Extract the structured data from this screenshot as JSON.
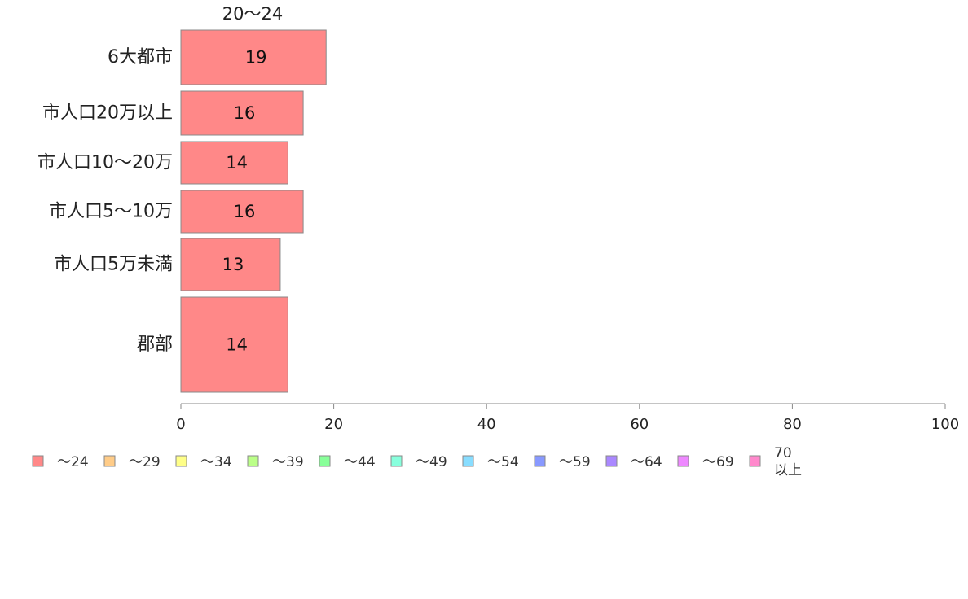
{
  "chart_data": {
    "type": "bar",
    "orientation": "horizontal",
    "title": "",
    "series_title": "20〜24",
    "categories": [
      "6大都市",
      "市人口20万以上",
      "市人口10〜20万",
      "市人口5〜10万",
      "市人口5万未満",
      "郡部"
    ],
    "series": [
      {
        "name": "〜24",
        "values": [
          19,
          16,
          14,
          16,
          13,
          14
        ]
      }
    ],
    "data_labels": [
      "19",
      "16",
      "14",
      "16",
      "13",
      "14"
    ],
    "xlim": [
      0,
      100
    ],
    "xticks": [
      0,
      20,
      40,
      60,
      80,
      100
    ],
    "xtick_labels": [
      "0",
      "20",
      "40",
      "60",
      "80",
      "100"
    ],
    "xlabel": "",
    "ylabel": "",
    "grid": false,
    "legend_position": "bottom-left",
    "legend": [
      {
        "label": "〜24",
        "color": "#ff8888"
      },
      {
        "label": "〜29",
        "color": "#ffcc88"
      },
      {
        "label": "〜34",
        "color": "#ffff88"
      },
      {
        "label": "〜39",
        "color": "#bbff88"
      },
      {
        "label": "〜44",
        "color": "#88ff99"
      },
      {
        "label": "〜49",
        "color": "#88ffdd"
      },
      {
        "label": "〜54",
        "color": "#88ddff"
      },
      {
        "label": "〜59",
        "color": "#8899ff"
      },
      {
        "label": "〜64",
        "color": "#aa88ff"
      },
      {
        "label": "〜69",
        "color": "#ee88ff"
      },
      {
        "label": "70\n以上",
        "color": "#ff88cc"
      }
    ]
  }
}
